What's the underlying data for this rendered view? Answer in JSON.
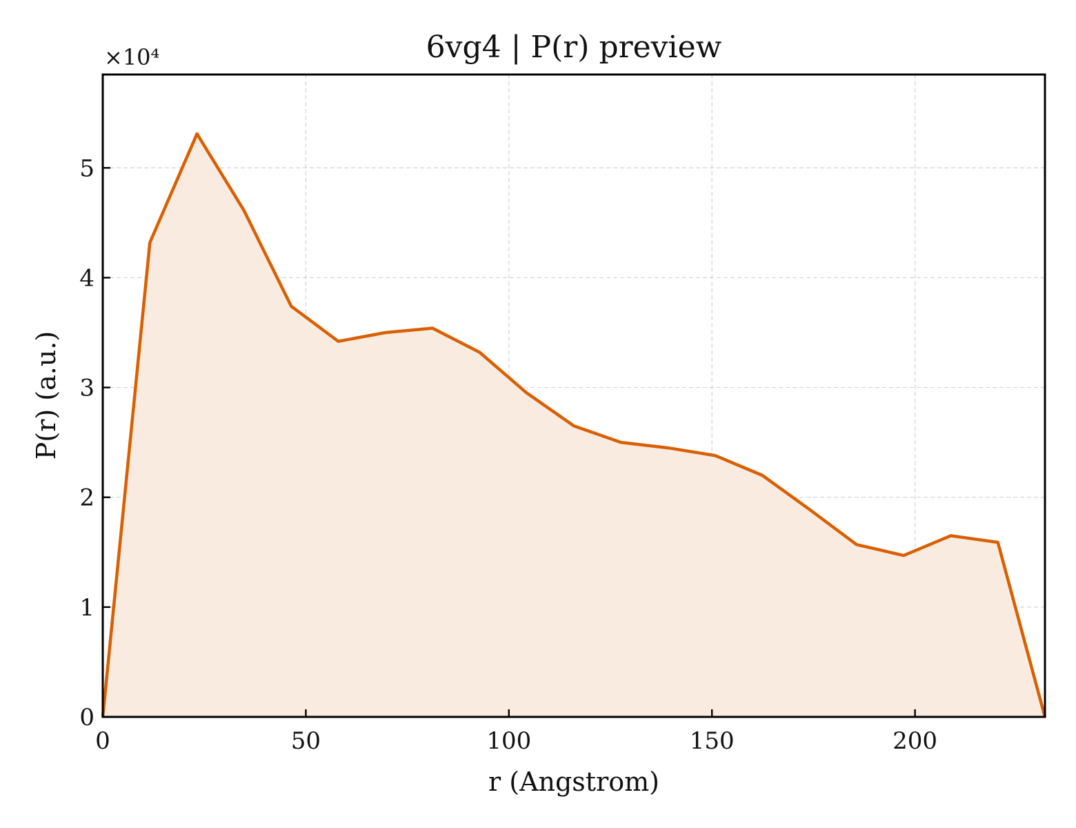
{
  "chart_data": {
    "type": "area",
    "title": "6vg4 | P(r) preview",
    "xlabel": "r (Angstrom)",
    "ylabel": "P(r) (a.u.)",
    "y_multiplier_label": "×10⁴",
    "xlim": [
      0,
      232
    ],
    "ylim": [
      0,
      5.85
    ],
    "x_ticks": [
      0,
      50,
      100,
      150,
      200
    ],
    "y_ticks": [
      0,
      1,
      2,
      3,
      4,
      5
    ],
    "grid": true,
    "line_color": "#d95f02",
    "fill_color": "#f9ebe0",
    "series": [
      {
        "x": [
          0,
          11.6,
          23.2,
          34.8,
          46.4,
          58.0,
          69.6,
          81.2,
          92.8,
          104.4,
          116.0,
          127.6,
          139.2,
          150.8,
          162.4,
          174.0,
          185.6,
          197.2,
          208.8,
          220.4,
          232.0
        ],
        "values": [
          0.0,
          4.32,
          5.31,
          4.61,
          3.74,
          3.42,
          3.5,
          3.54,
          3.32,
          2.95,
          2.65,
          2.5,
          2.45,
          2.38,
          2.2,
          1.89,
          1.57,
          1.47,
          1.65,
          1.59,
          0.0
        ]
      }
    ]
  }
}
